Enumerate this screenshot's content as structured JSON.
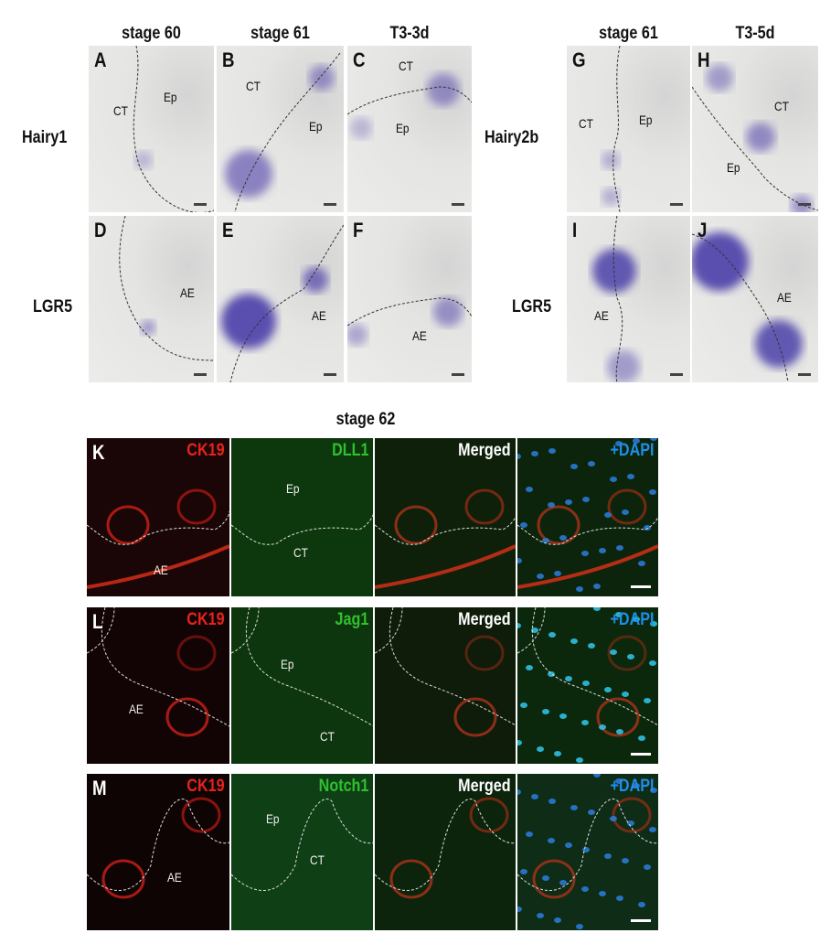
{
  "top": {
    "left_headers": [
      "stage 60",
      "stage 61",
      "T3-3d"
    ],
    "right_headers": [
      "stage 61",
      "T3-5d"
    ],
    "left_rows": [
      "Hairy1",
      "LGR5"
    ],
    "right_rows": [
      "Hairy2b",
      "LGR5"
    ],
    "panels": [
      {
        "letter": "A",
        "labels": [
          "Ep",
          "CT"
        ]
      },
      {
        "letter": "B",
        "labels": [
          "CT",
          "Ep"
        ]
      },
      {
        "letter": "C",
        "labels": [
          "CT",
          "Ep"
        ]
      },
      {
        "letter": "D",
        "labels": [
          "AE"
        ]
      },
      {
        "letter": "E",
        "labels": [
          "AE"
        ]
      },
      {
        "letter": "F",
        "labels": [
          "AE"
        ]
      },
      {
        "letter": "G",
        "labels": [
          "CT",
          "Ep"
        ]
      },
      {
        "letter": "H",
        "labels": [
          "CT",
          "Ep"
        ]
      },
      {
        "letter": "I",
        "labels": [
          "AE"
        ]
      },
      {
        "letter": "J",
        "labels": [
          "AE"
        ]
      }
    ]
  },
  "bottom": {
    "header": "stage 62",
    "rows": [
      {
        "letter": "K",
        "channels": [
          "CK19",
          "DLL1",
          "Merged",
          "+DAPI"
        ],
        "labels": [
          [
            "AE"
          ],
          [
            "Ep",
            "CT"
          ],
          [],
          []
        ]
      },
      {
        "letter": "L",
        "channels": [
          "CK19",
          "Jag1",
          "Merged",
          "+DAPI"
        ],
        "labels": [
          [
            "AE"
          ],
          [
            "Ep",
            "CT"
          ],
          [],
          []
        ]
      },
      {
        "letter": "M",
        "channels": [
          "CK19",
          "Notch1",
          "Merged",
          "+DAPI"
        ],
        "labels": [
          [
            "AE"
          ],
          [
            "Ep",
            "CT"
          ],
          [],
          []
        ]
      }
    ],
    "channel_colors": [
      "#e8231c",
      "#2fc02f",
      "#ffffff",
      "#1e8fe8"
    ]
  }
}
